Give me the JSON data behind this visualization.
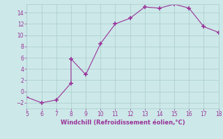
{
  "x": [
    5,
    6,
    7,
    8,
    8,
    9,
    10,
    11,
    12,
    13,
    14,
    15,
    16,
    17,
    18
  ],
  "y": [
    -1,
    -2,
    -1.5,
    1.5,
    5.8,
    3.0,
    8.5,
    12.0,
    13.0,
    15.0,
    14.8,
    15.5,
    14.8,
    11.5,
    10.5
  ],
  "xlabel": "Windchill (Refroidissement éolien,°C)",
  "xlim": [
    5,
    18
  ],
  "ylim": [
    -3,
    15.5
  ],
  "yticks": [
    -2,
    0,
    2,
    4,
    6,
    8,
    10,
    12,
    14
  ],
  "xticks": [
    5,
    6,
    7,
    8,
    9,
    10,
    11,
    12,
    13,
    14,
    15,
    16,
    17,
    18
  ],
  "line_color": "#993399",
  "marker": "+",
  "bg_color": "#cce8e8",
  "grid_color": "#aacccc",
  "label_color": "#993399"
}
